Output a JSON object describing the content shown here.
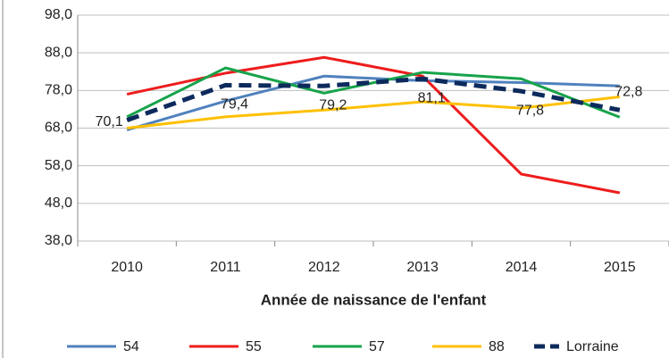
{
  "chart_data": {
    "type": "line",
    "x_label": "Année de naissance de l'enfant",
    "categories": [
      "2010",
      "2011",
      "2012",
      "2013",
      "2014",
      "2015"
    ],
    "series": [
      {
        "name": "54",
        "color": "#4f81bd",
        "values": [
          67.5,
          75.2,
          81.8,
          80.6,
          80.1,
          79.2
        ]
      },
      {
        "name": "55",
        "color": "#ee1c1c",
        "values": [
          77.0,
          82.6,
          86.8,
          81.8,
          55.8,
          50.8
        ]
      },
      {
        "name": "57",
        "color": "#16a34a",
        "values": [
          71.0,
          84.0,
          77.3,
          82.8,
          81.1,
          70.9
        ]
      },
      {
        "name": "88",
        "color": "#ffc000",
        "values": [
          68.0,
          71.0,
          72.8,
          75.0,
          73.3,
          76.3
        ]
      },
      {
        "name": "Lorraine",
        "color": "#0d2a5c",
        "dashed": true,
        "values": [
          70.1,
          79.4,
          79.2,
          81.1,
          77.8,
          72.8
        ],
        "value_labels": [
          "70,1",
          "79,4",
          "79,2",
          "81,1",
          "77,8",
          "72,8"
        ]
      }
    ],
    "ylim": [
      38,
      98
    ],
    "yticks": [
      {
        "value": 38,
        "label": "38,0"
      },
      {
        "value": 48,
        "label": "48,0"
      },
      {
        "value": 58,
        "label": "58,0"
      },
      {
        "value": 68,
        "label": "68,0"
      },
      {
        "value": 78,
        "label": "78,0"
      },
      {
        "value": 88,
        "label": "88,0"
      },
      {
        "value": 98,
        "label": "98,0"
      }
    ],
    "grid": true,
    "legend": "bottom"
  }
}
